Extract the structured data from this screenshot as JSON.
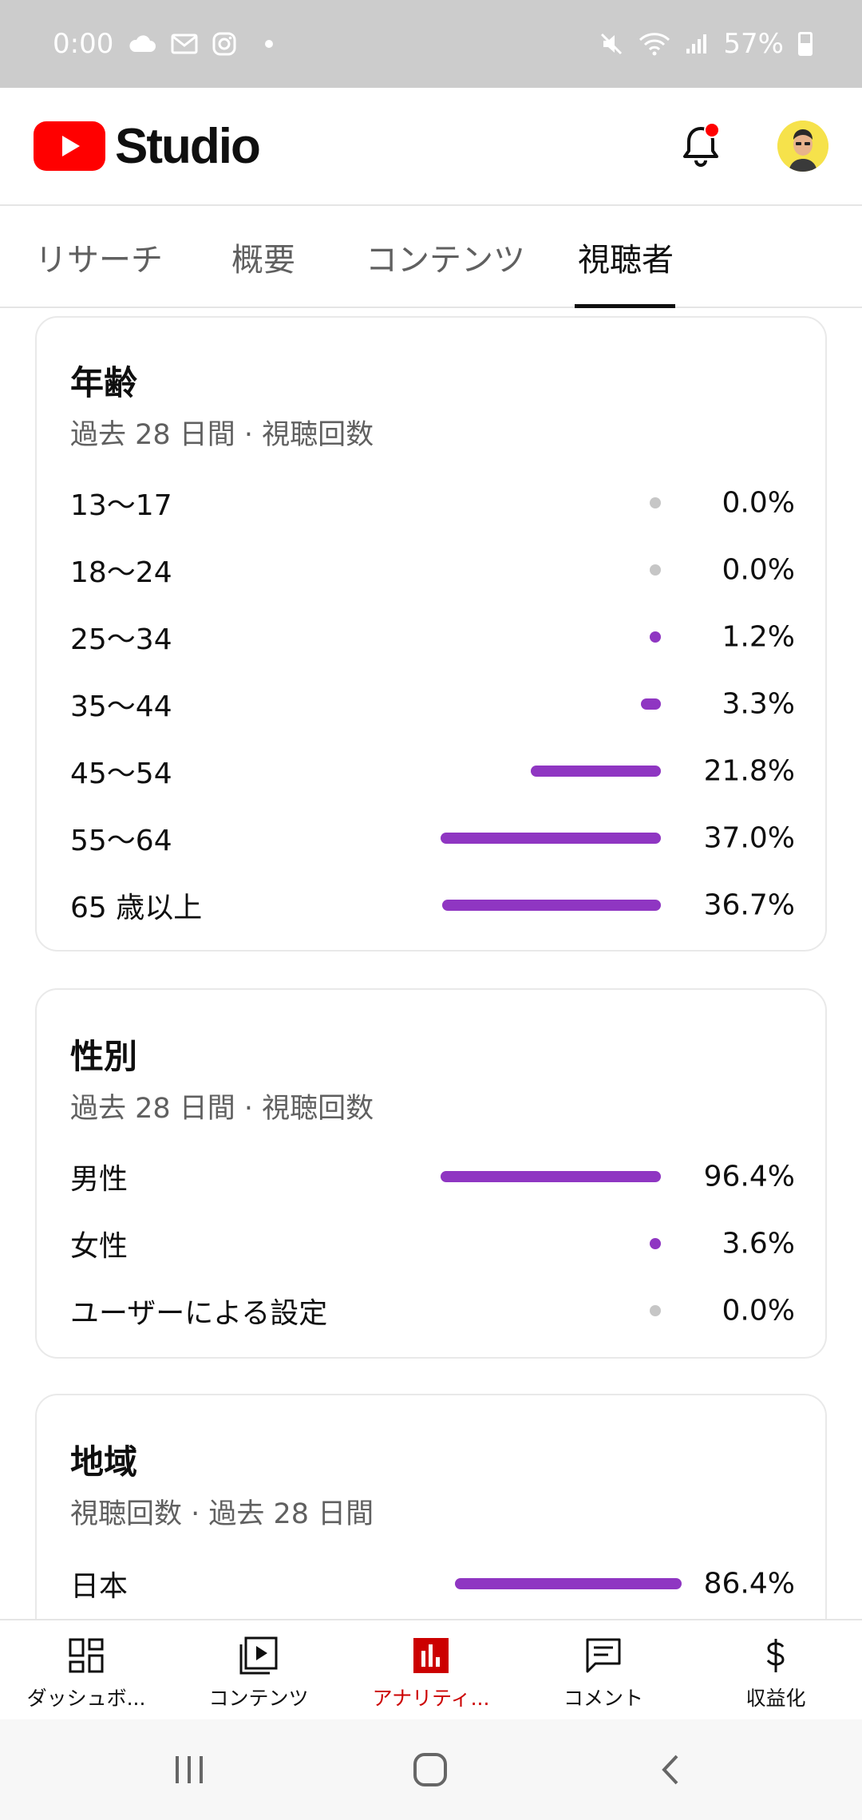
{
  "status_bar": {
    "time": "0:00",
    "battery": "57%"
  },
  "header": {
    "app_name": "Studio"
  },
  "tabs": [
    {
      "label": "リサーチ"
    },
    {
      "label": "概要"
    },
    {
      "label": "コンテンツ"
    },
    {
      "label": "視聴者",
      "active": true
    }
  ],
  "age_card": {
    "title": "年齢",
    "subtitle": "過去 28 日間 · 視聴回数",
    "rows": [
      {
        "label": "13〜17",
        "value": "0.0%",
        "pct": 0.0
      },
      {
        "label": "18〜24",
        "value": "0.0%",
        "pct": 0.0
      },
      {
        "label": "25〜34",
        "value": "1.2%",
        "pct": 1.2
      },
      {
        "label": "35〜44",
        "value": "3.3%",
        "pct": 3.3
      },
      {
        "label": "45〜54",
        "value": "21.8%",
        "pct": 21.8
      },
      {
        "label": "55〜64",
        "value": "37.0%",
        "pct": 37.0
      },
      {
        "label": "65 歳以上",
        "value": "36.7%",
        "pct": 36.7
      }
    ]
  },
  "gender_card": {
    "title": "性別",
    "subtitle": "過去 28 日間 · 視聴回数",
    "rows": [
      {
        "label": "男性",
        "value": "96.4%",
        "pct": 96.4
      },
      {
        "label": "女性",
        "value": "3.6%",
        "pct": 3.6
      },
      {
        "label": "ユーザーによる設定",
        "value": "0.0%",
        "pct": 0.0
      }
    ]
  },
  "region_card": {
    "title": "地域",
    "subtitle": "視聴回数 · 過去 28 日間",
    "rows": [
      {
        "label": "日本",
        "value": "86.4%",
        "pct": 86.4
      }
    ]
  },
  "bottom_nav": [
    {
      "label": "ダッシュボ...",
      "icon": "dashboard-icon"
    },
    {
      "label": "コンテンツ",
      "icon": "content-icon"
    },
    {
      "label": "アナリティ...",
      "icon": "analytics-icon",
      "active": true
    },
    {
      "label": "コメント",
      "icon": "comment-icon"
    },
    {
      "label": "収益化",
      "icon": "dollar-icon"
    }
  ],
  "colors": {
    "bar": "#8f36c2",
    "bar_zero": "#c6c6c6",
    "brand_red": "#ff0000",
    "active_nav": "#cc0000"
  }
}
